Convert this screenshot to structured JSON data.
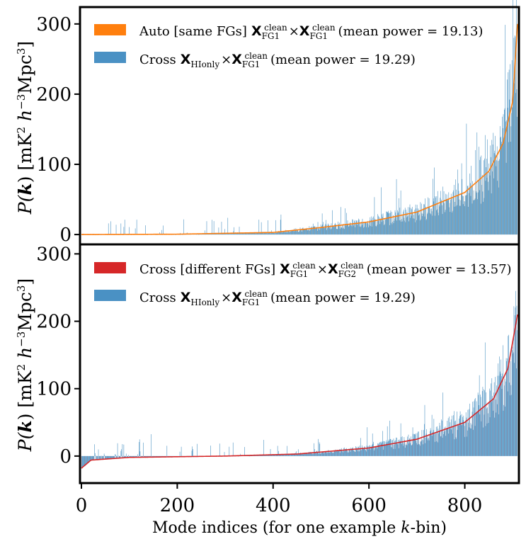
{
  "chart_data": [
    {
      "type": "bar",
      "panel": "top",
      "ylabel": "P(k) [mK² h⁻³Mpc³]",
      "xlim": [
        0,
        910
      ],
      "ylim": [
        -12,
        322
      ],
      "yticks": [
        0,
        100,
        200,
        300
      ],
      "xticks": [],
      "legend_placement": "top-left",
      "series": [
        {
          "name": "Auto [same FGs] X^clean_FG1 × X^clean_FG1 (mean power = 19.13)",
          "legend_label_prefix": "Auto [same FGs]",
          "legend_suffix": "(mean power = 19.13)",
          "mean_power": 19.13,
          "color": "#ff7f0e",
          "role": "sorted smooth curve",
          "envelope": [
            [
              0,
              0
            ],
            [
              200,
              0.5
            ],
            [
              400,
              3
            ],
            [
              500,
              10
            ],
            [
              600,
              18
            ],
            [
              700,
              32
            ],
            [
              800,
              60
            ],
            [
              850,
              90
            ],
            [
              880,
              130
            ],
            [
              900,
              190
            ],
            [
              910,
              300
            ]
          ]
        },
        {
          "name": "Cross X_HIonly × X^clean_FG1 (mean power = 19.29)",
          "legend_label_prefix": "Cross",
          "legend_suffix": "(mean power = 19.29)",
          "mean_power": 19.29,
          "color": "#1f77b4",
          "role": "noisy bars"
        }
      ],
      "legend_math": [
        {
          "symbol": "X",
          "sub": "FG1",
          "sup": "clean"
        },
        {
          "symbol": "X",
          "sub": "FG1",
          "sup": "clean"
        },
        {
          "symbol": "X",
          "sub": "HIonly",
          "sup": ""
        },
        {
          "symbol": "X",
          "sub": "FG1",
          "sup": "clean"
        }
      ]
    },
    {
      "type": "bar",
      "panel": "bottom",
      "ylabel": "P(k) [mK² h⁻³Mpc³]",
      "xlabel": "Mode indices (for one example k-bin)",
      "xlim": [
        0,
        910
      ],
      "ylim": [
        -38,
        312
      ],
      "yticks": [
        0,
        100,
        200,
        300
      ],
      "xticks": [
        0,
        200,
        400,
        600,
        800
      ],
      "legend_placement": "top-left",
      "series": [
        {
          "name": "Cross [different FGs] X^clean_FG1 × X^clean_FG2 (mean power = 13.57)",
          "legend_label_prefix": "Cross [different FGs]",
          "legend_suffix": "(mean power = 13.57)",
          "mean_power": 13.57,
          "color": "#d62728",
          "role": "sorted smooth curve",
          "envelope": [
            [
              0,
              -18
            ],
            [
              20,
              -6
            ],
            [
              100,
              -2
            ],
            [
              300,
              0
            ],
            [
              450,
              3
            ],
            [
              600,
              12
            ],
            [
              700,
              25
            ],
            [
              800,
              50
            ],
            [
              860,
              85
            ],
            [
              890,
              130
            ],
            [
              910,
              210
            ]
          ]
        },
        {
          "name": "Cross X_HIonly × X^clean_FG1 (mean power = 19.29)",
          "legend_label_prefix": "Cross",
          "legend_suffix": "(mean power = 19.29)",
          "mean_power": 19.29,
          "color": "#1f77b4",
          "role": "noisy bars"
        }
      ],
      "legend_math": [
        {
          "symbol": "X",
          "sub": "FG1",
          "sup": "clean"
        },
        {
          "symbol": "X",
          "sub": "FG2",
          "sup": "clean"
        },
        {
          "symbol": "X",
          "sub": "HIonly",
          "sup": ""
        },
        {
          "symbol": "X",
          "sub": "FG1",
          "sup": "clean"
        }
      ]
    }
  ],
  "labels": {
    "ylabel_P": "P(",
    "ylabel_k": "k",
    "ylabel_units": ") [mK",
    "ylabel_sq": "2",
    "ylabel_h": " h",
    "ylabel_hexp": "−3",
    "ylabel_mpc": "Mpc",
    "ylabel_mpcexp": "3",
    "ylabel_close": "]",
    "xlabel_main": "Mode indices (for one example ",
    "xlabel_k": "k",
    "xlabel_end": "-bin)",
    "times": "×"
  }
}
